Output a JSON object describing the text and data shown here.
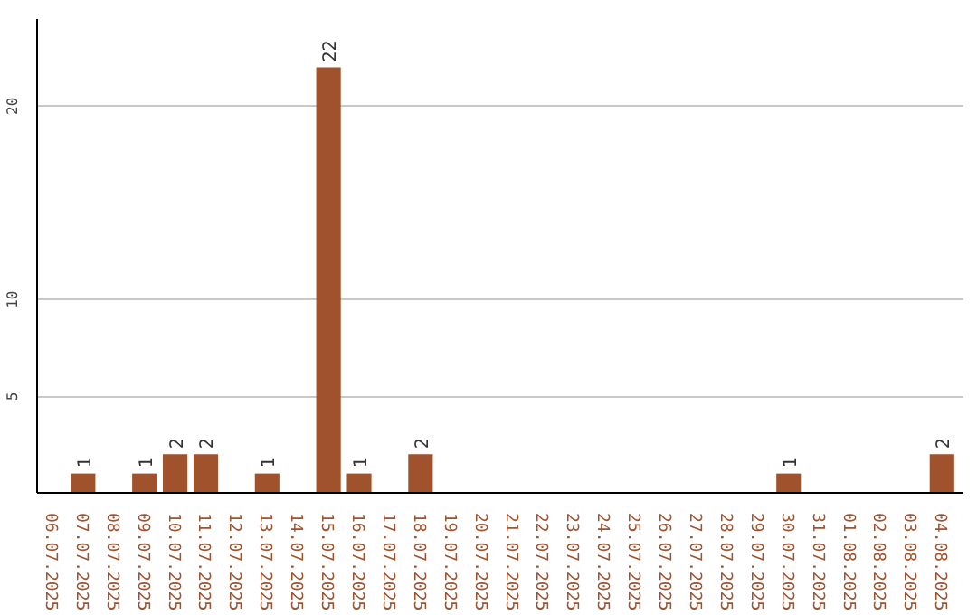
{
  "chart_data": {
    "type": "bar",
    "categories": [
      "06.07.2025",
      "07.07.2025",
      "08.07.2025",
      "09.07.2025",
      "10.07.2025",
      "11.07.2025",
      "12.07.2025",
      "13.07.2025",
      "14.07.2025",
      "15.07.2025",
      "16.07.2025",
      "17.07.2025",
      "18.07.2025",
      "19.07.2025",
      "20.07.2025",
      "21.07.2025",
      "22.07.2025",
      "23.07.2025",
      "24.07.2025",
      "25.07.2025",
      "26.07.2025",
      "27.07.2025",
      "28.07.2025",
      "29.07.2025",
      "30.07.2025",
      "31.07.2025",
      "01.08.2025",
      "02.08.2025",
      "03.08.2025",
      "04.08.2025"
    ],
    "values": [
      0,
      1,
      0,
      1,
      2,
      2,
      0,
      1,
      0,
      22,
      1,
      0,
      2,
      0,
      0,
      0,
      0,
      0,
      0,
      0,
      0,
      0,
      0,
      0,
      1,
      0,
      0,
      0,
      0,
      2
    ],
    "value_labels": [
      null,
      "1",
      null,
      "1",
      "2",
      "2",
      null,
      "1",
      null,
      "22",
      "1",
      null,
      "2",
      null,
      null,
      null,
      null,
      null,
      null,
      null,
      null,
      null,
      null,
      null,
      "1",
      null,
      null,
      null,
      null,
      "2"
    ],
    "color": "#a0522d",
    "ylim": [
      0,
      24.5
    ],
    "yticks": [
      5,
      10,
      20
    ],
    "grid": "y"
  }
}
